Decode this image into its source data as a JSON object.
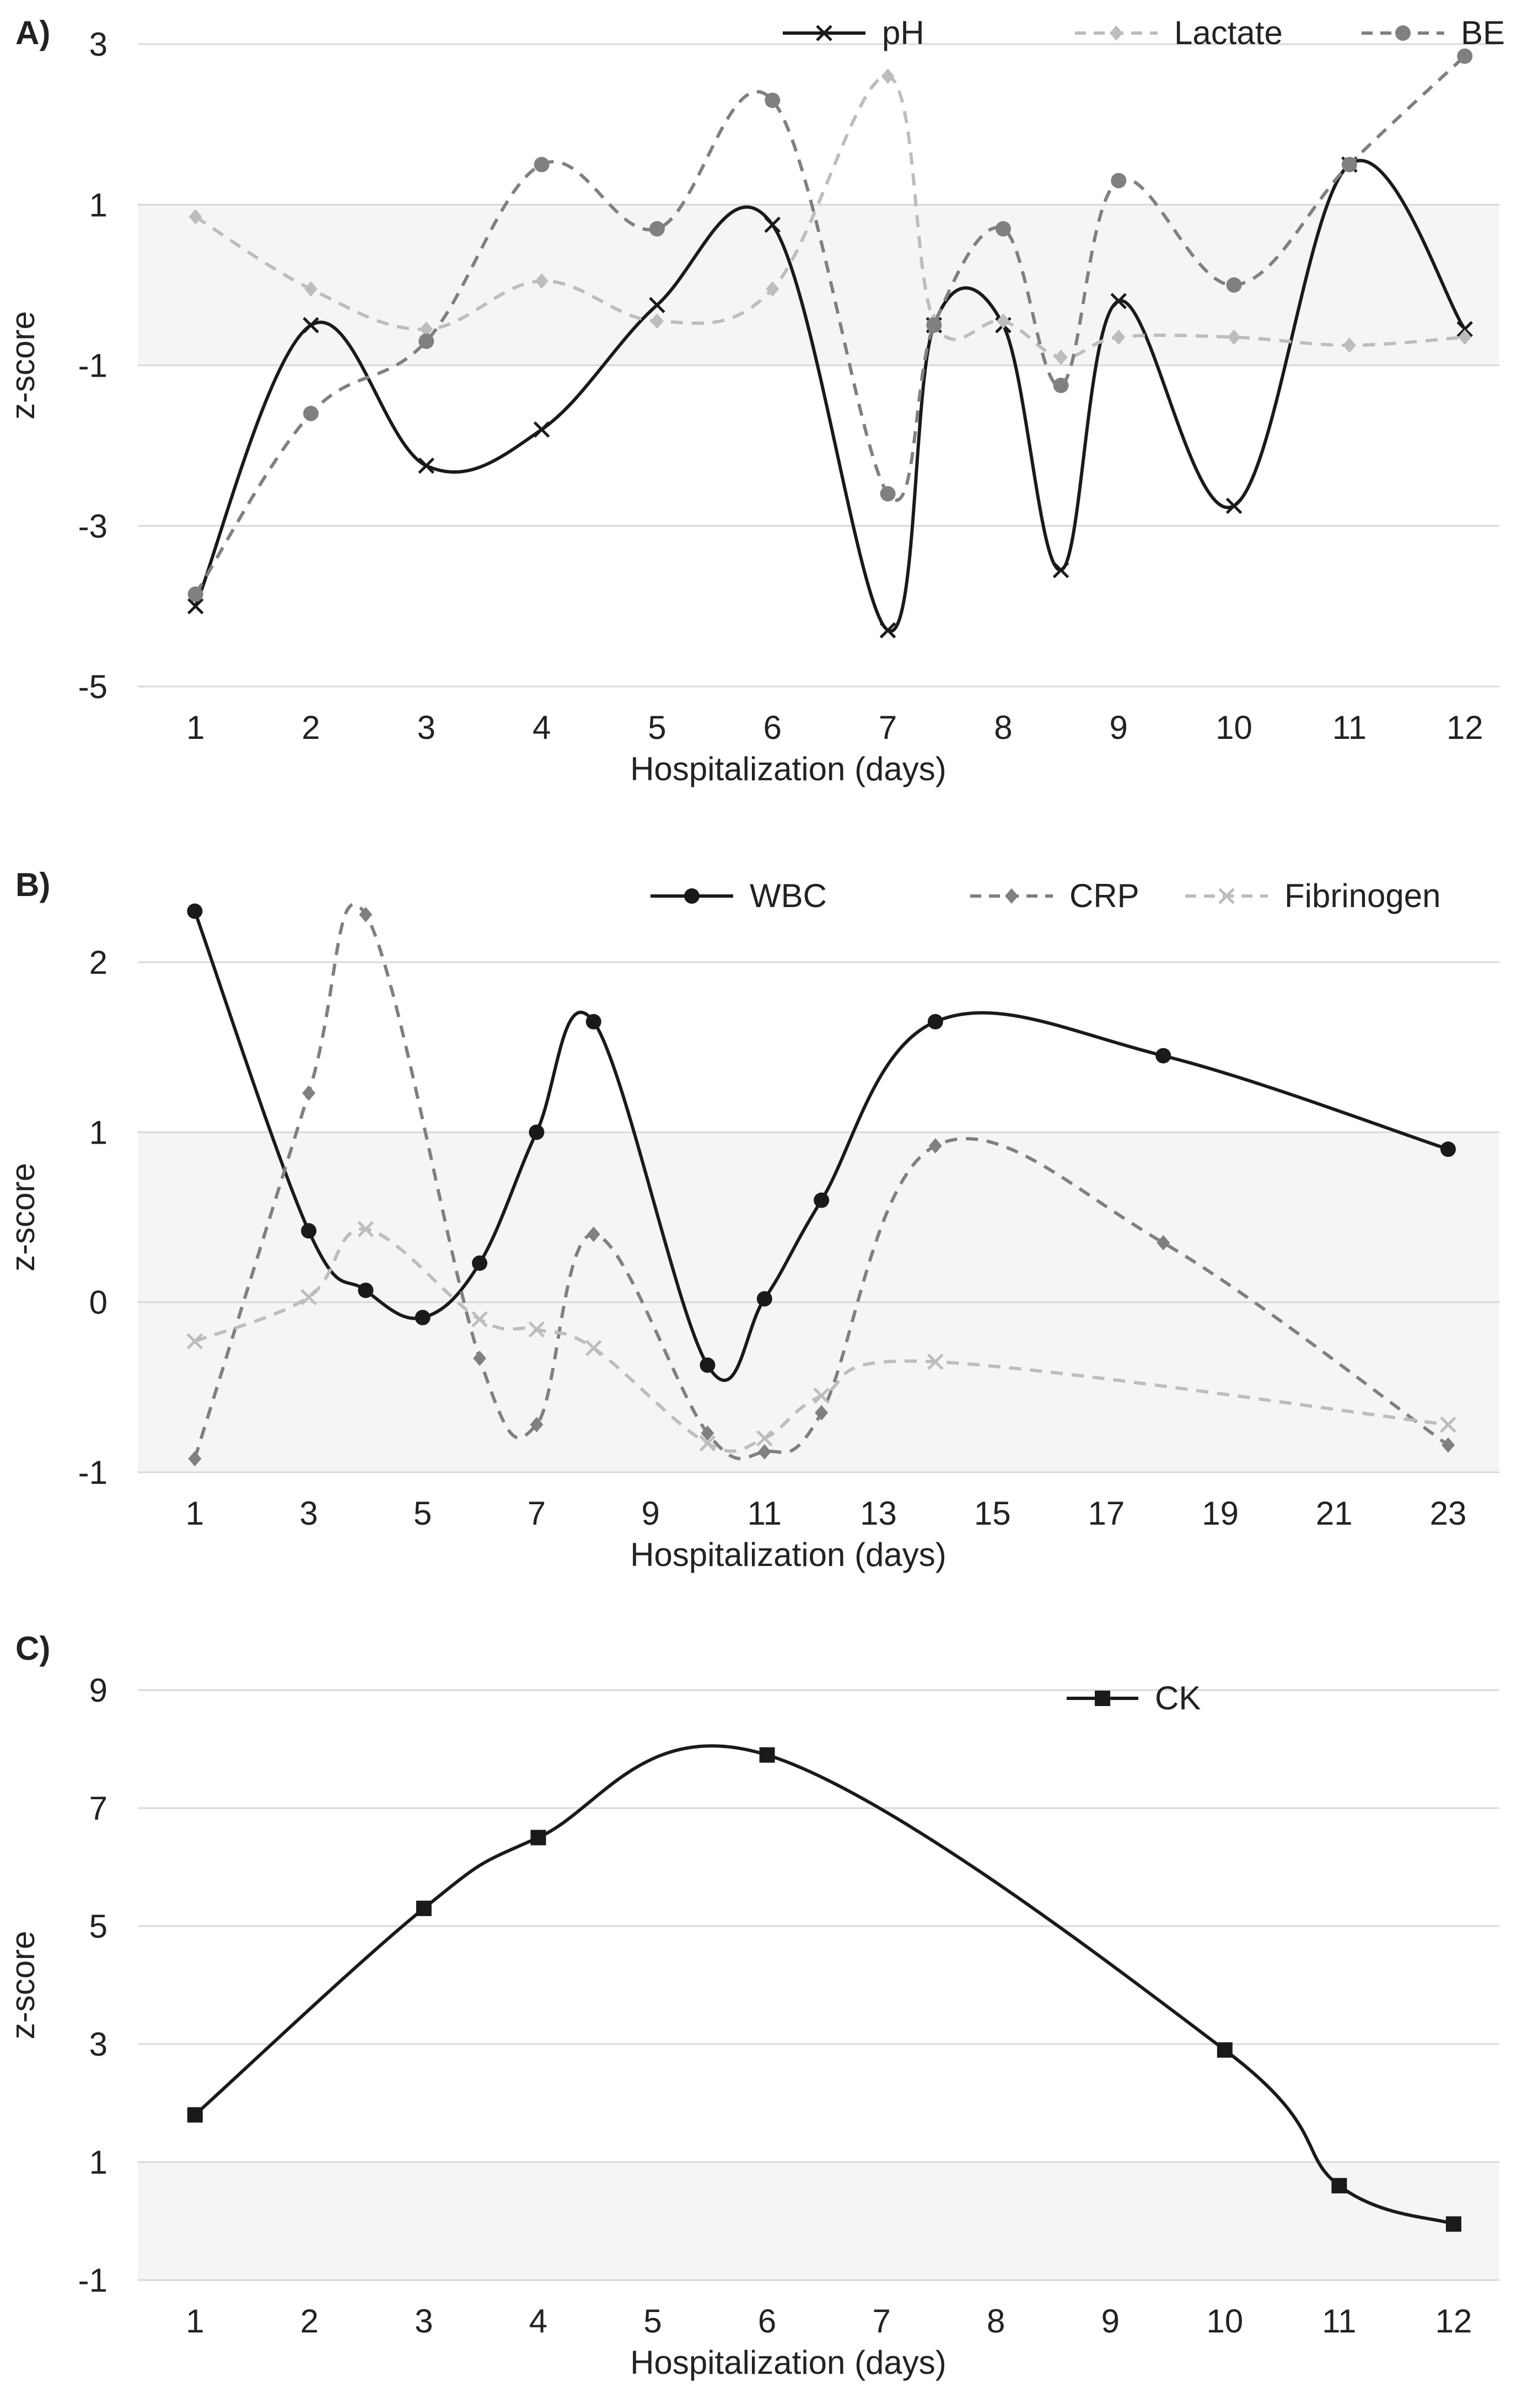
{
  "colors": {
    "black": "#1a1a1a",
    "dark_gray": "#808080",
    "light_gray": "#bdbdbd",
    "band": "#f5f5f5",
    "grid": "#d9d9d9",
    "text": "#222222"
  },
  "chart_data": [
    {
      "panel_label": "A)",
      "type": "line",
      "xlabel": "Hospitalization (days)",
      "ylabel": "z-score",
      "ylim": [
        -5,
        3
      ],
      "yticks": [
        3,
        1,
        -1,
        -3,
        -5
      ],
      "normal_band": [
        -1,
        1
      ],
      "xticks": [
        {
          "x": 1,
          "label": "1"
        },
        {
          "x": 2,
          "label": "2"
        },
        {
          "x": 3,
          "label": "3"
        },
        {
          "x": 4,
          "label": "4"
        },
        {
          "x": 5,
          "label": "5"
        },
        {
          "x": 6,
          "label": "6"
        },
        {
          "x": 7,
          "label": "7"
        },
        {
          "x": 8,
          "label": "8"
        },
        {
          "x": 9,
          "label": "9"
        },
        {
          "x": 10,
          "label": "10"
        },
        {
          "x": 11,
          "label": "11"
        },
        {
          "x": 12,
          "label": "12"
        }
      ],
      "xlim": [
        0.5,
        12.3
      ],
      "legend_position": "top-right",
      "series": [
        {
          "name": "pH",
          "color": "#1a1a1a",
          "dash": "solid",
          "marker": "x",
          "points": [
            [
              1,
              -4.0
            ],
            [
              2,
              -0.5
            ],
            [
              3,
              -2.25
            ],
            [
              4,
              -1.8
            ],
            [
              5,
              -0.25
            ],
            [
              6,
              0.75
            ],
            [
              7,
              -4.3
            ],
            [
              7.4,
              -0.5
            ],
            [
              8,
              -0.5
            ],
            [
              8.5,
              -3.55
            ],
            [
              9,
              -0.2
            ],
            [
              10,
              -2.75
            ],
            [
              11,
              1.5
            ],
            [
              12,
              -0.55
            ]
          ]
        },
        {
          "name": "Lactate",
          "color": "#bdbdbd",
          "dash": "dashed",
          "marker": "diamond",
          "points": [
            [
              1,
              0.85
            ],
            [
              2,
              -0.05
            ],
            [
              3,
              -0.55
            ],
            [
              4,
              0.05
            ],
            [
              5,
              -0.45
            ],
            [
              6,
              -0.05
            ],
            [
              7,
              2.6
            ],
            [
              7.4,
              -0.45
            ],
            [
              8,
              -0.45
            ],
            [
              8.5,
              -0.9
            ],
            [
              9,
              -0.65
            ],
            [
              10,
              -0.65
            ],
            [
              11,
              -0.75
            ],
            [
              12,
              -0.65
            ]
          ]
        },
        {
          "name": "BE",
          "color": "#808080",
          "dash": "dashed",
          "marker": "circle",
          "points": [
            [
              1,
              -3.85
            ],
            [
              2,
              -1.6
            ],
            [
              3,
              -0.7
            ],
            [
              4,
              1.5
            ],
            [
              5,
              0.7
            ],
            [
              6,
              2.3
            ],
            [
              7,
              -2.6
            ],
            [
              7.4,
              -0.5
            ],
            [
              8,
              0.7
            ],
            [
              8.5,
              -1.25
            ],
            [
              9,
              1.3
            ],
            [
              10,
              0.0
            ],
            [
              11,
              1.5
            ],
            [
              12,
              2.85
            ]
          ]
        }
      ]
    },
    {
      "panel_label": "B)",
      "type": "line",
      "xlabel": "Hospitalization (days)",
      "ylabel": "z-score",
      "ylim": [
        -1,
        2
      ],
      "yticks": [
        2,
        1,
        0,
        -1
      ],
      "normal_band": [
        -1,
        1
      ],
      "xticks": [
        {
          "x": 1,
          "label": "1"
        },
        {
          "x": 3,
          "label": "3"
        },
        {
          "x": 5,
          "label": "5"
        },
        {
          "x": 7,
          "label": "7"
        },
        {
          "x": 9,
          "label": "9"
        },
        {
          "x": 11,
          "label": "11"
        },
        {
          "x": 13,
          "label": "13"
        },
        {
          "x": 15,
          "label": "15"
        },
        {
          "x": 17,
          "label": "17"
        },
        {
          "x": 19,
          "label": "19"
        },
        {
          "x": 21,
          "label": "21"
        },
        {
          "x": 23,
          "label": "23"
        }
      ],
      "xlim": [
        0,
        23.9
      ],
      "legend_position": "top-right",
      "series": [
        {
          "name": "WBC",
          "color": "#1a1a1a",
          "dash": "solid",
          "marker": "circle",
          "points": [
            [
              1,
              2.3
            ],
            [
              3,
              0.42
            ],
            [
              4,
              0.07
            ],
            [
              5,
              -0.09
            ],
            [
              6,
              0.23
            ],
            [
              7,
              1.0
            ],
            [
              8,
              1.65
            ],
            [
              10,
              -0.37
            ],
            [
              11,
              0.02
            ],
            [
              12,
              0.6
            ],
            [
              14,
              1.65
            ],
            [
              18,
              1.45
            ],
            [
              23,
              0.9
            ]
          ]
        },
        {
          "name": "CRP",
          "color": "#808080",
          "dash": "dashed",
          "marker": "diamond",
          "points": [
            [
              1,
              -0.92
            ],
            [
              3,
              1.23
            ],
            [
              4,
              2.28
            ],
            [
              6,
              -0.33
            ],
            [
              7,
              -0.72
            ],
            [
              8,
              0.4
            ],
            [
              10,
              -0.77
            ],
            [
              11,
              -0.88
            ],
            [
              12,
              -0.65
            ],
            [
              14,
              0.92
            ],
            [
              18,
              0.35
            ],
            [
              23,
              -0.84
            ]
          ]
        },
        {
          "name": "Fibrinogen",
          "color": "#bdbdbd",
          "dash": "dashed",
          "marker": "x",
          "points": [
            [
              1,
              -0.23
            ],
            [
              3,
              0.03
            ],
            [
              4,
              0.43
            ],
            [
              6,
              -0.1
            ],
            [
              7,
              -0.16
            ],
            [
              8,
              -0.27
            ],
            [
              10,
              -0.83
            ],
            [
              11,
              -0.8
            ],
            [
              12,
              -0.55
            ],
            [
              14,
              -0.35
            ],
            [
              23,
              -0.72
            ]
          ]
        }
      ]
    },
    {
      "panel_label": "C)",
      "type": "line",
      "xlabel": "Hospitalization (days)",
      "ylabel": "z-score",
      "ylim": [
        -1,
        9
      ],
      "yticks": [
        9,
        7,
        5,
        3,
        1,
        -1
      ],
      "normal_band": [
        -1,
        1
      ],
      "xticks": [
        {
          "x": 1,
          "label": "1"
        },
        {
          "x": 2,
          "label": "2"
        },
        {
          "x": 3,
          "label": "3"
        },
        {
          "x": 4,
          "label": "4"
        },
        {
          "x": 5,
          "label": "5"
        },
        {
          "x": 6,
          "label": "6"
        },
        {
          "x": 7,
          "label": "7"
        },
        {
          "x": 8,
          "label": "8"
        },
        {
          "x": 9,
          "label": "9"
        },
        {
          "x": 10,
          "label": "10"
        },
        {
          "x": 11,
          "label": "11"
        },
        {
          "x": 12,
          "label": "12"
        }
      ],
      "xlim": [
        0.5,
        12.4
      ],
      "legend_position": "top-right",
      "series": [
        {
          "name": "CK",
          "color": "#1a1a1a",
          "dash": "solid",
          "marker": "square",
          "points": [
            [
              1,
              1.8
            ],
            [
              3,
              5.3
            ],
            [
              4,
              6.5
            ],
            [
              6,
              7.9
            ],
            [
              10,
              2.9
            ],
            [
              11,
              0.6
            ],
            [
              12,
              -0.05
            ]
          ]
        }
      ]
    }
  ]
}
